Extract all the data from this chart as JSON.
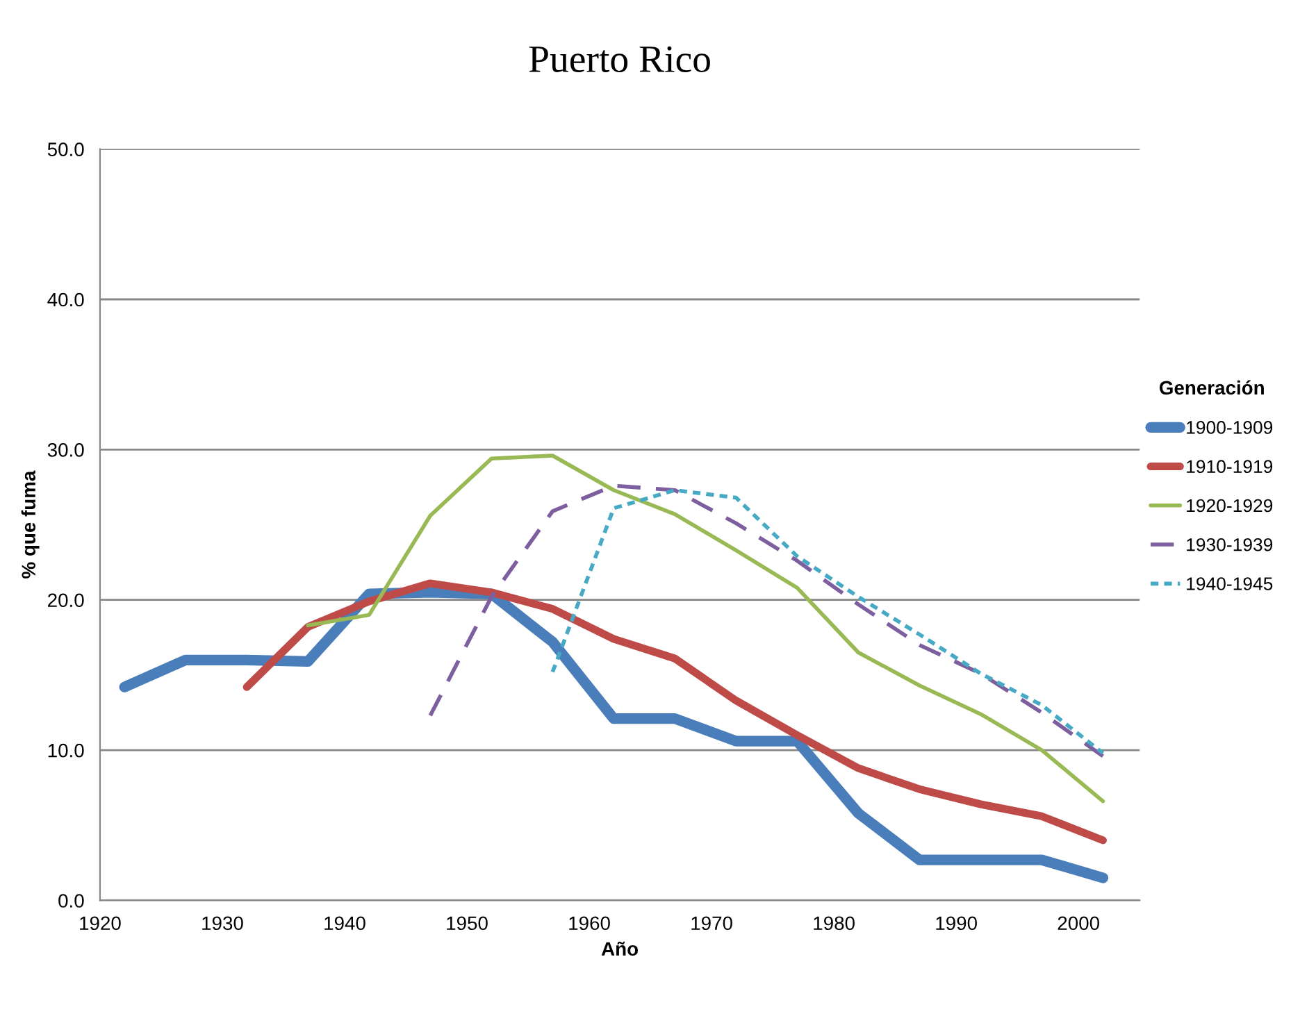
{
  "chart_data": {
    "type": "line",
    "title": "Puerto Rico",
    "xlabel": "Año",
    "ylabel": "% que fuma",
    "legend_title": "Generación",
    "xlim": [
      1920,
      2005
    ],
    "xticks": [
      1920,
      1930,
      1940,
      1950,
      1960,
      1970,
      1980,
      1990,
      2000
    ],
    "ylim": [
      0,
      50
    ],
    "yticks": [
      {
        "value": 0,
        "label": "0.0"
      },
      {
        "value": 10,
        "label": "10.0"
      },
      {
        "value": 20,
        "label": "20.0"
      },
      {
        "value": 30,
        "label": "30.0"
      },
      {
        "value": 40,
        "label": "40.0"
      },
      {
        "value": 50,
        "label": "50.0"
      }
    ],
    "grid": "y",
    "legend": "right",
    "series": [
      {
        "name": "1900-1909",
        "color": "#4a7ebb",
        "line_style": "solid",
        "x": [
          1922,
          1927,
          1932,
          1937,
          1942,
          1947,
          1952,
          1957,
          1962,
          1967,
          1972,
          1977,
          1982,
          1987,
          1992,
          1997,
          2002
        ],
        "values": [
          14.2,
          16.0,
          16.0,
          15.9,
          20.4,
          20.5,
          20.4,
          17.2,
          12.1,
          12.1,
          10.6,
          10.6,
          5.8,
          2.7,
          2.7,
          2.7,
          1.5
        ]
      },
      {
        "name": "1910-1919",
        "color": "#be4b48",
        "line_style": "solid",
        "x": [
          1932,
          1937,
          1942,
          1947,
          1952,
          1957,
          1962,
          1967,
          1972,
          1977,
          1982,
          1987,
          1992,
          1997,
          2002
        ],
        "values": [
          14.2,
          18.2,
          19.9,
          21.1,
          20.5,
          19.4,
          17.4,
          16.1,
          13.3,
          11.0,
          8.8,
          7.4,
          6.4,
          5.6,
          4.0
        ]
      },
      {
        "name": "1920-1929",
        "color": "#98b954",
        "line_style": "solid",
        "x": [
          1937,
          1942,
          1947,
          1952,
          1957,
          1962,
          1967,
          1972,
          1977,
          1982,
          1987,
          1992,
          1997,
          2002
        ],
        "values": [
          18.3,
          19.0,
          25.6,
          29.4,
          29.6,
          27.3,
          25.7,
          23.3,
          20.8,
          16.5,
          14.3,
          12.4,
          10.0,
          6.6
        ]
      },
      {
        "name": "1930-1939",
        "color": "#7d5fa0",
        "line_style": "dashed",
        "x": [
          1947,
          1952,
          1957,
          1962,
          1967,
          1972,
          1977,
          1982,
          1987,
          1992,
          1997,
          2002
        ],
        "values": [
          12.3,
          20.2,
          25.9,
          27.6,
          27.3,
          25.1,
          22.6,
          19.7,
          17.0,
          15.1,
          12.5,
          9.6
        ]
      },
      {
        "name": "1940-1945",
        "color": "#46aac5",
        "line_style": "dotted",
        "x": [
          1957,
          1962,
          1967,
          1972,
          1977,
          1982,
          1987,
          1992,
          1997,
          2002
        ],
        "values": [
          15.2,
          26.1,
          27.3,
          26.8,
          22.9,
          20.2,
          17.7,
          15.1,
          13.0,
          9.8
        ]
      }
    ]
  }
}
